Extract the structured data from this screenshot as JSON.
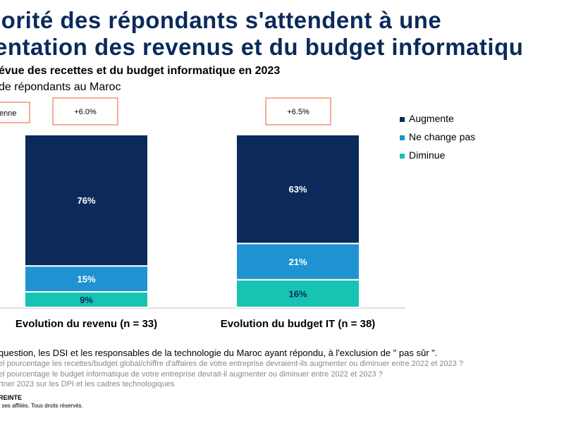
{
  "header": {
    "title_line1": "jorité des répondants s'attendent à une",
    "title_line2": "entation des revenus et du budget informatiqu",
    "subtitle": "évue des recettes et du budget informatique en 2023",
    "subsubtitle": "de répondants au Maroc"
  },
  "chart_data": {
    "type": "bar",
    "stacked": true,
    "categories": [
      "Evolution du revenu (n = 33)",
      "Evolution du budget IT (n = 38)"
    ],
    "series": [
      {
        "name": "Diminue",
        "values": [
          9,
          16
        ],
        "color": "#17c3b2"
      },
      {
        "name": "Ne change pas",
        "values": [
          15,
          21
        ],
        "color": "#1f93d1"
      },
      {
        "name": "Augmente",
        "values": [
          76,
          63
        ],
        "color": "#0b2a5b"
      }
    ],
    "value_labels": [
      [
        "9%",
        "15%",
        "76%"
      ],
      [
        "16%",
        "21%",
        "63%"
      ]
    ],
    "averages": [
      "+6.0%",
      "+6.5%"
    ],
    "average_label": "enne",
    "legend": [
      {
        "name": "Augmente",
        "color": "#0b2a5b"
      },
      {
        "name": "Ne change pas",
        "color": "#1f93d1"
      },
      {
        "name": "Diminue",
        "color": "#17c3b2"
      }
    ],
    "legend_position": "right",
    "grid": false
  },
  "footnotes": {
    "note": "question, les DSI et les responsables de la technologie du Maroc ayant répondu, à l'exclusion de \" pas sûr \".",
    "q1": "el pourcentage les recettes/budget global/chiffre d'affaires de votre entreprise devraient-ils augmenter ou diminuer entre 2022 et 2023 ?",
    "q2": "el pourcentage le budget informatique de votre entreprise devrait-il augmenter ou diminuer entre 2022 et 2023 ?",
    "source": "rtner 2023 sur les DPI et les cadres technologiques",
    "confidential": "REINTE",
    "copyright": "t ses affiliés. Tous droits réservés."
  }
}
